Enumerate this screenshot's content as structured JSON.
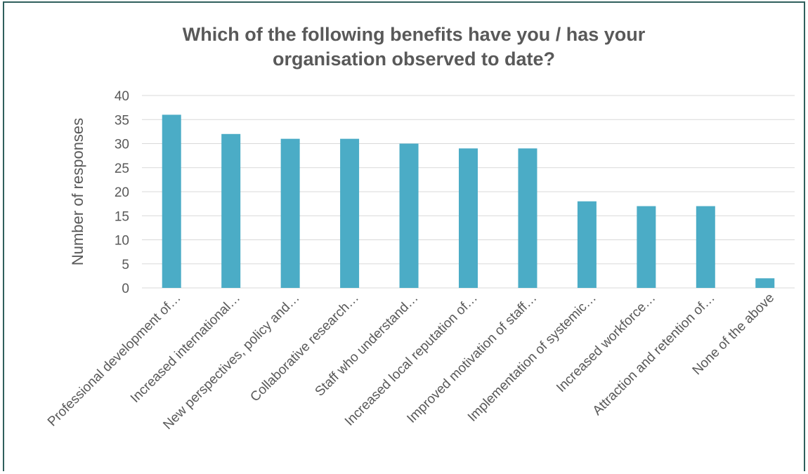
{
  "colors": {
    "bar": "#4bacc6",
    "grid": "#d9d9d9",
    "text": "#595959",
    "frame": "#2f5f5c"
  },
  "chart_data": {
    "type": "bar",
    "title_lines": [
      "Which of the following benefits have you / has your",
      "organisation observed to date?"
    ],
    "xlabel": "",
    "ylabel": "Number of responses",
    "ylim": [
      0,
      40
    ],
    "yticks": [
      0,
      5,
      10,
      15,
      20,
      25,
      30,
      35,
      40
    ],
    "grid": true,
    "categories": [
      "Professional development of…",
      "Increased international…",
      "New perspectives, policy and…",
      "Collaborative research…",
      "Staff who understand…",
      "Increased local reputation of…",
      "Improved motivation of staff…",
      "Implementation of systemic…",
      "Increased workforce…",
      "Attraction and retention of…",
      "None of the above"
    ],
    "values": [
      36,
      32,
      31,
      31,
      30,
      29,
      29,
      18,
      17,
      17,
      2
    ]
  }
}
